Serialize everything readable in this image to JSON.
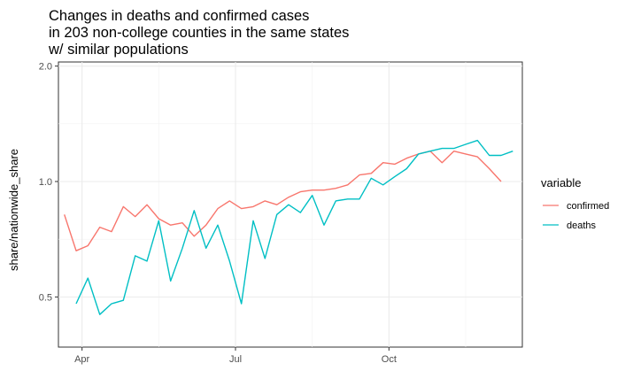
{
  "chart_data": {
    "type": "line",
    "title": [
      "Changes in deaths and confirmed cases",
      "in 203 non-college counties in the same states",
      "w/ similar populations"
    ],
    "xlabel": "",
    "ylabel": "share/nationwide_share",
    "x_scale": "time (weekly)",
    "y_scale": "log10",
    "ylim": [
      0.37,
      2.05
    ],
    "y_ticks": [
      {
        "value": 0.5,
        "label": "0.5"
      },
      {
        "value": 1.0,
        "label": "1.0"
      },
      {
        "value": 2.0,
        "label": "2.0"
      }
    ],
    "x_ticks": [
      {
        "week": 1.5,
        "label": "Apr"
      },
      {
        "week": 14.5,
        "label": "Jul"
      },
      {
        "week": 27.5,
        "label": "Oct"
      }
    ],
    "x_range_weeks": [
      -0.5,
      38.8
    ],
    "legend": {
      "title": "variable",
      "position": "right"
    },
    "series": [
      {
        "name": "confirmed",
        "color": "#F8766D",
        "x_weeks": [
          0,
          1,
          2,
          3,
          4,
          5,
          6,
          7,
          8,
          9,
          10,
          11,
          12,
          13,
          14,
          15,
          16,
          17,
          18,
          19,
          20,
          21,
          22,
          23,
          24,
          25,
          26,
          27,
          28,
          29,
          30,
          31,
          32,
          33,
          34,
          35,
          36,
          37
        ],
        "values": [
          0.82,
          0.66,
          0.68,
          0.76,
          0.74,
          0.86,
          0.81,
          0.87,
          0.8,
          0.77,
          0.78,
          0.72,
          0.77,
          0.85,
          0.89,
          0.85,
          0.86,
          0.89,
          0.87,
          0.91,
          0.94,
          0.95,
          0.95,
          0.96,
          0.98,
          1.04,
          1.05,
          1.12,
          1.11,
          1.15,
          1.18,
          1.2,
          1.12,
          1.2,
          1.18,
          1.16,
          1.08,
          1.0
        ]
      },
      {
        "name": "deaths",
        "color": "#00BFC4",
        "x_weeks": [
          1,
          2,
          3,
          4,
          5,
          6,
          7,
          8,
          9,
          10,
          11,
          12,
          13,
          14,
          15,
          16,
          17,
          18,
          19,
          20,
          21,
          22,
          23,
          24,
          25,
          26,
          27,
          28,
          29,
          30,
          31,
          32,
          33,
          34,
          35,
          36,
          37,
          38
        ],
        "values": [
          0.48,
          0.56,
          0.45,
          0.48,
          0.49,
          0.64,
          0.62,
          0.79,
          0.55,
          0.67,
          0.84,
          0.67,
          0.77,
          0.62,
          0.48,
          0.79,
          0.63,
          0.82,
          0.87,
          0.83,
          0.92,
          0.77,
          0.89,
          0.9,
          0.9,
          1.02,
          0.98,
          1.03,
          1.08,
          1.18,
          1.2,
          1.22,
          1.22,
          1.25,
          1.28,
          1.17,
          1.17,
          1.2
        ]
      }
    ]
  }
}
